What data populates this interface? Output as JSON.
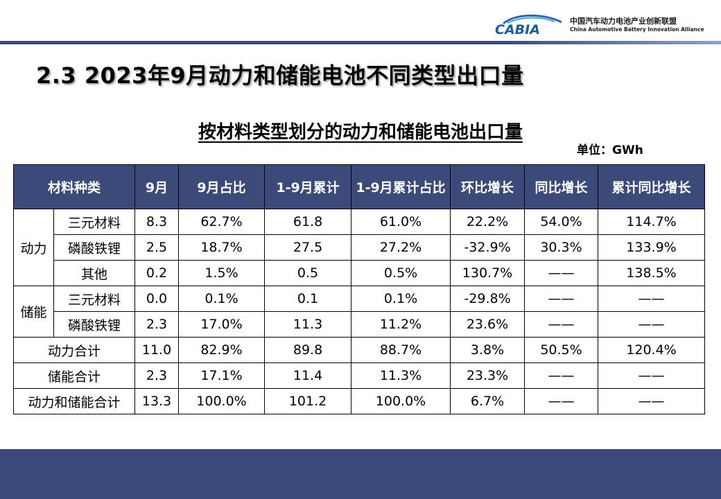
{
  "logo": {
    "mark_text": "CABIA",
    "name_cn": "中国汽车动力电池产业创新联盟",
    "name_en": "China Automotive Battery Innovation Alliance"
  },
  "page_title": "2.3  2023年9月动力和储能电池不同类型出口量",
  "table_title": "按材料类型划分的动力和储能电池出口量",
  "unit": "单位：GWh",
  "colors": {
    "header_bg": "#3c4a79",
    "band": "#3c4a79"
  },
  "table": {
    "headers": [
      "材料种类",
      "9月",
      "9月占比",
      "1-9月累计",
      "1-9月累计占比",
      "环比增长",
      "同比增长",
      "累计同比增长"
    ],
    "group_power": "动力",
    "group_storage": "储能",
    "rows": [
      [
        "三元材料",
        "8.3",
        "62.7%",
        "61.8",
        "61.0%",
        "22.2%",
        "54.0%",
        "114.7%"
      ],
      [
        "磷酸铁锂",
        "2.5",
        "18.7%",
        "27.5",
        "27.2%",
        "-32.9%",
        "30.3%",
        "133.9%"
      ],
      [
        "其他",
        "0.2",
        "1.5%",
        "0.5",
        "0.5%",
        "130.7%",
        "——",
        "138.5%"
      ],
      [
        "三元材料",
        "0.0",
        "0.1%",
        "0.1",
        "0.1%",
        "-29.8%",
        "——",
        "——"
      ],
      [
        "磷酸铁锂",
        "2.3",
        "17.0%",
        "11.3",
        "11.2%",
        "23.6%",
        "——",
        "——"
      ],
      [
        "动力合计",
        "11.0",
        "82.9%",
        "89.8",
        "88.7%",
        "3.8%",
        "50.5%",
        "120.4%"
      ],
      [
        "储能合计",
        "2.3",
        "17.1%",
        "11.4",
        "11.3%",
        "23.3%",
        "——",
        "——"
      ],
      [
        "动力和储能合计",
        "13.3",
        "100.0%",
        "101.2",
        "100.0%",
        "6.7%",
        "——",
        "——"
      ]
    ]
  }
}
